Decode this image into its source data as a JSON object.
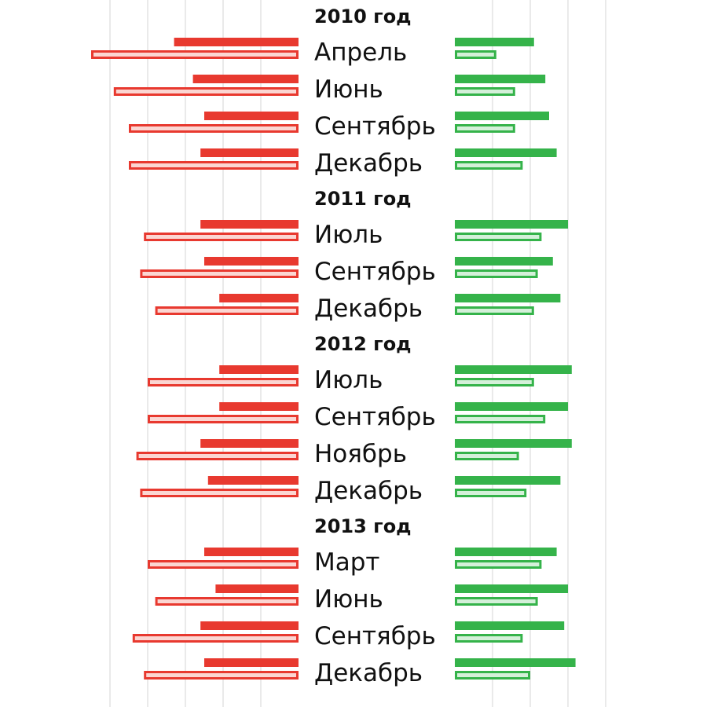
{
  "chart_data": {
    "type": "bar",
    "colors": {
      "negative": "#e8392f",
      "negative_fill_light": "#fbd6d2",
      "positive": "#35b34a",
      "positive_fill_light": "#d4f0d9",
      "grid": "#d6d6d6"
    },
    "groups": [
      {
        "year": "2010 год",
        "rows": [
          {
            "label": "Апрель",
            "neg_solid": 33,
            "neg_outline": 55,
            "pos_solid": 21,
            "pos_outline": 11
          },
          {
            "label": "Июнь",
            "neg_solid": 28,
            "neg_outline": 49,
            "pos_solid": 24,
            "pos_outline": 16
          },
          {
            "label": "Сентябрь",
            "neg_solid": 25,
            "neg_outline": 45,
            "pos_solid": 25,
            "pos_outline": 16
          },
          {
            "label": "Декабрь",
            "neg_solid": 26,
            "neg_outline": 45,
            "pos_solid": 27,
            "pos_outline": 18
          }
        ]
      },
      {
        "year": "2011 год",
        "rows": [
          {
            "label": "Июль",
            "neg_solid": 26,
            "neg_outline": 41,
            "pos_solid": 30,
            "pos_outline": 23
          },
          {
            "label": "Сентябрь",
            "neg_solid": 25,
            "neg_outline": 42,
            "pos_solid": 26,
            "pos_outline": 22
          },
          {
            "label": "Декабрь",
            "neg_solid": 21,
            "neg_outline": 38,
            "pos_solid": 28,
            "pos_outline": 21
          }
        ]
      },
      {
        "year": "2012 год",
        "rows": [
          {
            "label": "Июль",
            "neg_solid": 21,
            "neg_outline": 40,
            "pos_solid": 31,
            "pos_outline": 21
          },
          {
            "label": "Сентябрь",
            "neg_solid": 21,
            "neg_outline": 40,
            "pos_solid": 30,
            "pos_outline": 24
          },
          {
            "label": "Ноябрь",
            "neg_solid": 26,
            "neg_outline": 43,
            "pos_solid": 31,
            "pos_outline": 17
          },
          {
            "label": "Декабрь",
            "neg_solid": 24,
            "neg_outline": 42,
            "pos_solid": 28,
            "pos_outline": 19
          }
        ]
      },
      {
        "year": "2013 год",
        "rows": [
          {
            "label": "Март",
            "neg_solid": 25,
            "neg_outline": 40,
            "pos_solid": 27,
            "pos_outline": 23
          },
          {
            "label": "Июнь",
            "neg_solid": 22,
            "neg_outline": 38,
            "pos_solid": 30,
            "pos_outline": 22
          },
          {
            "label": "Сентябрь",
            "neg_solid": 26,
            "neg_outline": 44,
            "pos_solid": 29,
            "pos_outline": 18
          },
          {
            "label": "Декабрь",
            "neg_solid": 25,
            "neg_outline": 41,
            "pos_solid": 32,
            "pos_outline": 20
          }
        ]
      }
    ],
    "grid": true
  }
}
